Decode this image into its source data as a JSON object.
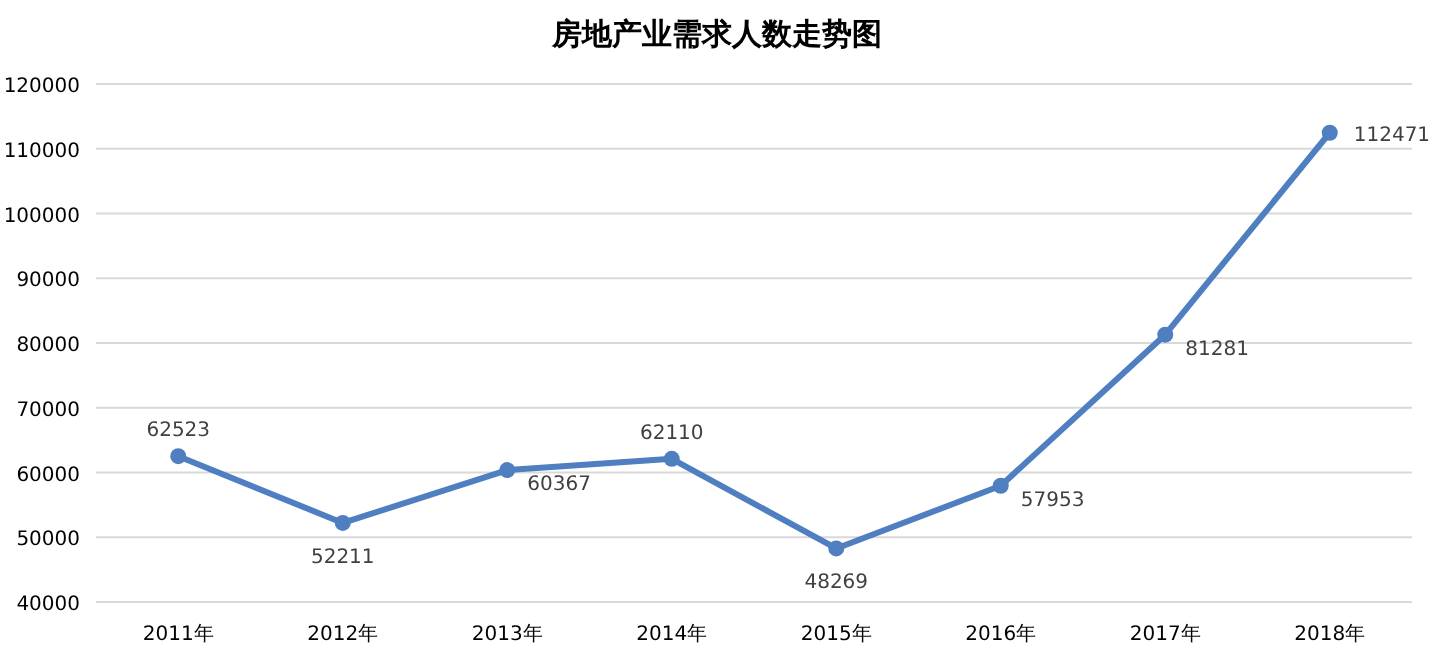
{
  "chart_data": {
    "type": "line",
    "title": "房地产业需求人数走势图",
    "categories": [
      "2011年",
      "2012年",
      "2013年",
      "2014年",
      "2015年",
      "2016年",
      "2017年",
      "2018年"
    ],
    "values": [
      62523,
      52211,
      60367,
      62110,
      48269,
      57953,
      81281,
      112471
    ],
    "color": "#4f7fc0",
    "ylim": [
      40000,
      120000
    ],
    "yticks": [
      40000,
      50000,
      60000,
      70000,
      80000,
      90000,
      100000,
      110000,
      120000
    ],
    "grid": "y",
    "marker": "circle",
    "data_labels": true
  }
}
